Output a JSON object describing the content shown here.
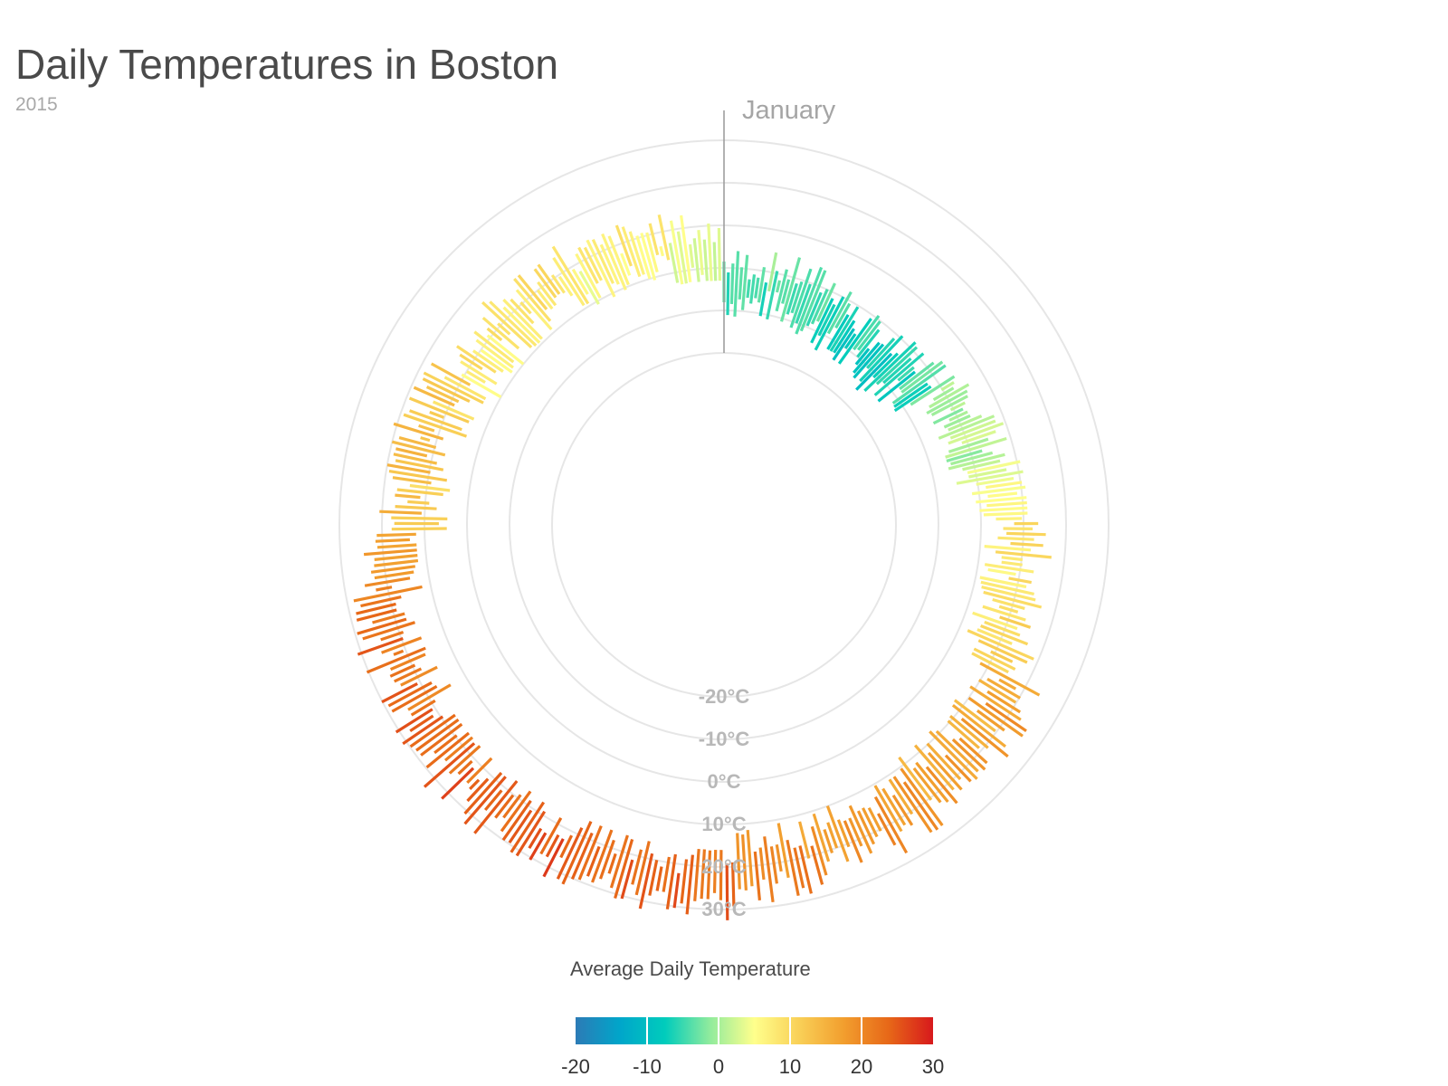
{
  "title": "Daily Temperatures in Boston",
  "subtitle": "2015",
  "chart_data": {
    "type": "radial-bar",
    "start_label": "January",
    "radial_axis": {
      "unit": "°C",
      "ticks": [
        -20,
        -10,
        0,
        10,
        20,
        30
      ],
      "tick_labels": [
        "-20°C",
        "-10°C",
        "0°C",
        "10°C",
        "20°C",
        "30°C"
      ],
      "domain": [
        -20,
        30
      ]
    },
    "grid": true,
    "legend": {
      "title": "Average Daily Temperature",
      "placement": "bottom-center",
      "ticks": [
        -20,
        -10,
        0,
        10,
        20,
        30
      ],
      "tick_labels": [
        "-20",
        "-10",
        "0",
        "10",
        "20",
        "30"
      ],
      "colors": [
        "#2c7bb6",
        "#00a6ca",
        "#00ccbc",
        "#90eb9d",
        "#ffff8c",
        "#f9d057",
        "#f29e2e",
        "#e76818",
        "#d7191c"
      ]
    },
    "month_ranges_c": {
      "Jan": [
        -8,
        1,
        -14,
        8
      ],
      "Feb": [
        -12,
        -3,
        -16,
        4
      ],
      "Mar": [
        -3,
        6,
        -6,
        11
      ],
      "Apr": [
        4,
        13,
        1,
        20
      ],
      "May": [
        11,
        22,
        6,
        28
      ],
      "Jun": [
        14,
        24,
        10,
        29
      ],
      "Jul": [
        19,
        29,
        16,
        33
      ],
      "Aug": [
        20,
        29,
        17,
        34
      ],
      "Sep": [
        17,
        27,
        12,
        33
      ],
      "Oct": [
        8,
        17,
        3,
        24
      ],
      "Nov": [
        4,
        13,
        0,
        20
      ],
      "Dec": [
        2,
        11,
        -3,
        17
      ]
    }
  }
}
